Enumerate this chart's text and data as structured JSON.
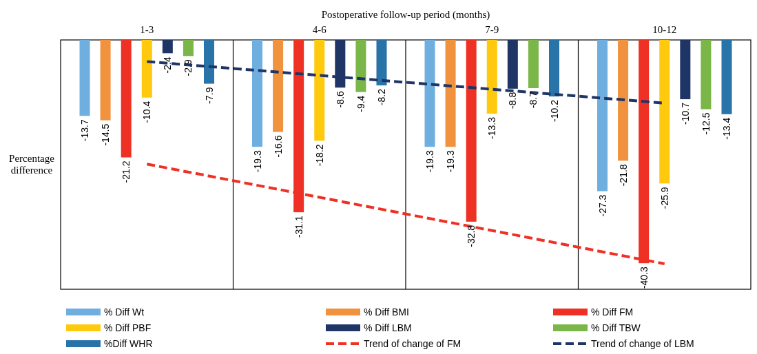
{
  "chart_data": {
    "type": "bar",
    "xlabel": "Postoperative follow-up period (months)",
    "ylabel": "Percentage difference",
    "categories": [
      "1-3",
      "4-6",
      "7-9",
      "10-12"
    ],
    "ylim": [
      -45,
      0
    ],
    "tick_labels": "x",
    "grid": "x",
    "legend": "bottom",
    "series": [
      {
        "name": "% Diff Wt",
        "color": "#6fafe0",
        "values": [
          -13.7,
          -19.3,
          -19.3,
          -27.3
        ],
        "value_labels": [
          "-13.7",
          "-19.3",
          "-19.3",
          "-27.3"
        ]
      },
      {
        "name": "% Diff BMI",
        "color": "#f0923e",
        "values": [
          -14.5,
          -16.6,
          -19.3,
          -21.8
        ],
        "value_labels": [
          "-14.5",
          "-16.6",
          "-19.3",
          "-21.8"
        ]
      },
      {
        "name": "% Diff FM",
        "color": "#ee3124",
        "values": [
          -21.2,
          -31.1,
          -32.8,
          -40.3
        ],
        "value_labels": [
          "-21.2",
          "-31.1",
          "-32.8",
          "-40.3"
        ]
      },
      {
        "name": "% Diff PBF",
        "color": "#ffc90e",
        "values": [
          -10.4,
          -18.2,
          -13.3,
          -25.9
        ],
        "value_labels": [
          "-10.4",
          "-18.2",
          "-13.3",
          "-25.9"
        ]
      },
      {
        "name": "% Diff LBM",
        "color": "#1f3566",
        "values": [
          -2.4,
          -8.6,
          -8.8,
          -10.7
        ],
        "value_labels": [
          "-2.4",
          "-8.6",
          "-8.8",
          "-10.7"
        ]
      },
      {
        "name": "% Diff TBW",
        "color": "#7ab648",
        "values": [
          -2.9,
          -9.4,
          -8.7,
          -12.5
        ],
        "value_labels": [
          "-2.9",
          "-9.4",
          "-8.7",
          "-12.5"
        ]
      },
      {
        "name": "%Diff WHR",
        "color": "#2873a8",
        "values": [
          -7.9,
          -8.2,
          -10.2,
          -13.4
        ],
        "value_labels": [
          "-7.9",
          "-8.2",
          "-10.2",
          "-13.4"
        ]
      },
      {
        "name": "Trend of change of FM",
        "type": "line",
        "line_style": "dashed",
        "color": "#ee3124",
        "values": [
          -22.4,
          -28.4,
          -34.4,
          -40.4
        ]
      },
      {
        "name": "Trend of change of LBM",
        "type": "line",
        "line_style": "dashed",
        "color": "#1f3566",
        "values": [
          -3.9,
          -6.4,
          -8.9,
          -11.4
        ]
      }
    ]
  }
}
